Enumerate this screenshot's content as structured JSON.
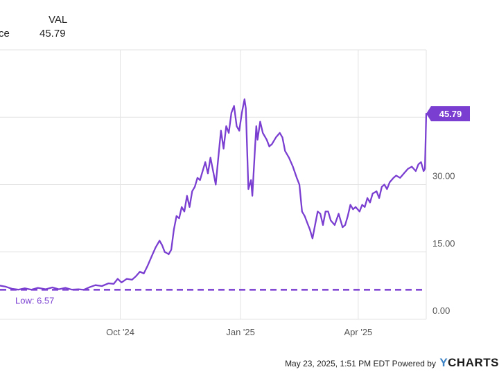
{
  "legend": {
    "ticker": "VAL",
    "series_label": "ce",
    "last_value": "45.79"
  },
  "colors": {
    "series": "#7a3fd1",
    "grid": "#e3e3e3",
    "axis_text": "#555555",
    "badge_text": "#ffffff"
  },
  "footer": {
    "timestamp": "May 23, 2025, 1:51 PM EDT Powered by",
    "brand_mark": "Y",
    "brand_text": "CHARTS"
  },
  "chart_data": {
    "type": "line",
    "ylim": [
      0,
      60
    ],
    "yticks": [
      {
        "value": 0,
        "label": "0.00"
      },
      {
        "value": 15,
        "label": "15.00"
      },
      {
        "value": 30,
        "label": "30.00"
      }
    ],
    "xticks": [
      {
        "x": "2024-10-01",
        "label": "Oct '24"
      },
      {
        "x": "2025-01-01",
        "label": "Jan '25"
      },
      {
        "x": "2025-04-01",
        "label": "Apr '25"
      }
    ],
    "xlim": [
      "2024-07-01",
      "2025-05-23"
    ],
    "low_label": "Low: 6.57",
    "low_value": 6.57,
    "last_label": "45.79",
    "last_value": 45.79,
    "series": [
      {
        "values": [
          [
            "2024-07-01",
            7.5
          ],
          [
            "2024-07-05",
            7.3
          ],
          [
            "2024-07-10",
            6.8
          ],
          [
            "2024-07-15",
            6.6
          ],
          [
            "2024-07-20",
            6.9
          ],
          [
            "2024-07-25",
            6.6
          ],
          [
            "2024-07-30",
            7.0
          ],
          [
            "2024-08-05",
            6.7
          ],
          [
            "2024-08-10",
            7.1
          ],
          [
            "2024-08-15",
            6.7
          ],
          [
            "2024-08-20",
            7.0
          ],
          [
            "2024-08-25",
            6.6
          ],
          [
            "2024-08-30",
            6.7
          ],
          [
            "2024-09-03",
            6.57
          ],
          [
            "2024-09-08",
            7.2
          ],
          [
            "2024-09-12",
            7.6
          ],
          [
            "2024-09-17",
            7.4
          ],
          [
            "2024-09-22",
            8.0
          ],
          [
            "2024-09-26",
            7.9
          ],
          [
            "2024-09-29",
            9.0
          ],
          [
            "2024-10-02",
            8.2
          ],
          [
            "2024-10-06",
            9.0
          ],
          [
            "2024-10-10",
            8.8
          ],
          [
            "2024-10-13",
            9.6
          ],
          [
            "2024-10-16",
            10.6
          ],
          [
            "2024-10-19",
            10.2
          ],
          [
            "2024-10-22",
            12.0
          ],
          [
            "2024-10-25",
            14.0
          ],
          [
            "2024-10-28",
            16.0
          ],
          [
            "2024-10-31",
            17.5
          ],
          [
            "2024-11-02",
            16.5
          ],
          [
            "2024-11-04",
            15.0
          ],
          [
            "2024-11-07",
            14.5
          ],
          [
            "2024-11-09",
            15.5
          ],
          [
            "2024-11-11",
            20.0
          ],
          [
            "2024-11-13",
            23.0
          ],
          [
            "2024-11-15",
            22.5
          ],
          [
            "2024-11-17",
            25.0
          ],
          [
            "2024-11-19",
            24.0
          ],
          [
            "2024-11-21",
            27.5
          ],
          [
            "2024-11-23",
            25.0
          ],
          [
            "2024-11-25",
            28.5
          ],
          [
            "2024-11-27",
            29.5
          ],
          [
            "2024-11-29",
            31.5
          ],
          [
            "2024-12-01",
            31.0
          ],
          [
            "2024-12-03",
            33.0
          ],
          [
            "2024-12-05",
            35.0
          ],
          [
            "2024-12-07",
            32.5
          ],
          [
            "2024-12-09",
            36.0
          ],
          [
            "2024-12-11",
            33.0
          ],
          [
            "2024-12-13",
            30.0
          ],
          [
            "2024-12-15",
            36.0
          ],
          [
            "2024-12-17",
            42.0
          ],
          [
            "2024-12-19",
            38.0
          ],
          [
            "2024-12-21",
            43.0
          ],
          [
            "2024-12-23",
            41.5
          ],
          [
            "2024-12-25",
            46.0
          ],
          [
            "2024-12-27",
            47.5
          ],
          [
            "2024-12-29",
            43.0
          ],
          [
            "2024-12-31",
            42.0
          ],
          [
            "2025-01-02",
            46.0
          ],
          [
            "2025-01-04",
            49.0
          ],
          [
            "2025-01-05",
            47.0
          ],
          [
            "2025-01-07",
            29.0
          ],
          [
            "2025-01-09",
            31.0
          ],
          [
            "2025-01-10",
            27.5
          ],
          [
            "2025-01-12",
            38.0
          ],
          [
            "2025-01-13",
            43.0
          ],
          [
            "2025-01-14",
            40.0
          ],
          [
            "2025-01-16",
            44.0
          ],
          [
            "2025-01-18",
            41.5
          ],
          [
            "2025-01-21",
            40.0
          ],
          [
            "2025-01-23",
            38.5
          ],
          [
            "2025-01-25",
            39.0
          ],
          [
            "2025-01-28",
            40.5
          ],
          [
            "2025-01-31",
            41.5
          ],
          [
            "2025-02-02",
            40.5
          ],
          [
            "2025-02-04",
            37.5
          ],
          [
            "2025-02-07",
            36.0
          ],
          [
            "2025-02-10",
            34.0
          ],
          [
            "2025-02-13",
            31.5
          ],
          [
            "2025-02-15",
            30.0
          ],
          [
            "2025-02-17",
            24.0
          ],
          [
            "2025-02-19",
            23.0
          ],
          [
            "2025-02-21",
            21.5
          ],
          [
            "2025-02-23",
            20.0
          ],
          [
            "2025-02-25",
            18.0
          ],
          [
            "2025-02-27",
            21.0
          ],
          [
            "2025-03-01",
            24.0
          ],
          [
            "2025-03-03",
            23.5
          ],
          [
            "2025-03-05",
            21.0
          ],
          [
            "2025-03-07",
            24.0
          ],
          [
            "2025-03-09",
            24.0
          ],
          [
            "2025-03-11",
            22.0
          ],
          [
            "2025-03-14",
            21.0
          ],
          [
            "2025-03-17",
            23.5
          ],
          [
            "2025-03-20",
            20.5
          ],
          [
            "2025-03-22",
            21.0
          ],
          [
            "2025-03-24",
            23.0
          ],
          [
            "2025-03-26",
            25.5
          ],
          [
            "2025-03-28",
            24.5
          ],
          [
            "2025-03-30",
            25.0
          ],
          [
            "2025-04-02",
            24.0
          ],
          [
            "2025-04-04",
            25.5
          ],
          [
            "2025-04-06",
            25.0
          ],
          [
            "2025-04-08",
            27.0
          ],
          [
            "2025-04-10",
            26.0
          ],
          [
            "2025-04-12",
            28.0
          ],
          [
            "2025-04-15",
            28.5
          ],
          [
            "2025-04-17",
            27.0
          ],
          [
            "2025-04-19",
            29.5
          ],
          [
            "2025-04-21",
            30.0
          ],
          [
            "2025-04-23",
            29.0
          ],
          [
            "2025-04-25",
            30.5
          ],
          [
            "2025-04-28",
            31.5
          ],
          [
            "2025-04-30",
            32.0
          ],
          [
            "2025-05-03",
            31.5
          ],
          [
            "2025-05-06",
            32.5
          ],
          [
            "2025-05-09",
            33.5
          ],
          [
            "2025-05-12",
            34.0
          ],
          [
            "2025-05-15",
            33.0
          ],
          [
            "2025-05-17",
            34.5
          ],
          [
            "2025-05-19",
            35.0
          ],
          [
            "2025-05-21",
            33.0
          ],
          [
            "2025-05-22",
            33.5
          ],
          [
            "2025-05-23",
            45.79
          ]
        ]
      }
    ]
  }
}
